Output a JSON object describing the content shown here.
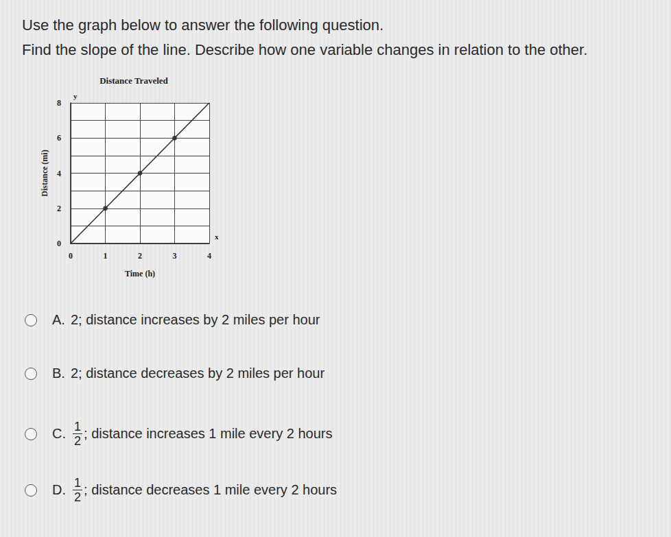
{
  "question": {
    "line1": "Use the graph below to answer the following question.",
    "line2": "Find the slope of the line. Describe how one variable changes in relation to the other."
  },
  "chart_data": {
    "type": "line",
    "title": "Distance Traveled",
    "x_label": "Time (h)",
    "y_label": "Distance (mi)",
    "axis_letters": {
      "x": "x",
      "y": "y"
    },
    "xlim": [
      0,
      4
    ],
    "xticks": [
      0,
      1,
      2,
      3,
      4
    ],
    "ylim": [
      0,
      8
    ],
    "yticks": [
      0,
      2,
      4,
      6,
      8
    ],
    "grid": true,
    "series": [
      {
        "type": "line",
        "x": [
          0,
          1,
          2,
          3,
          4
        ],
        "values": [
          0,
          2,
          4,
          6,
          8
        ],
        "color": "#333333"
      },
      {
        "type": "scatter",
        "x": [
          1,
          2,
          3
        ],
        "values": [
          2,
          4,
          6
        ],
        "color": "#222222",
        "marker": "circle"
      }
    ]
  },
  "options": [
    {
      "letter": "A.",
      "slope": "2",
      "description": "; distance increases by 2 miles per hour"
    },
    {
      "letter": "B.",
      "slope": "2",
      "description": "; distance decreases by 2 miles per hour"
    },
    {
      "letter": "C.",
      "slope": {
        "numerator": "1",
        "denominator": "2"
      },
      "description": "; distance increases 1 mile every 2 hours"
    },
    {
      "letter": "D.",
      "slope": {
        "numerator": "1",
        "denominator": "2"
      },
      "description": "; distance decreases 1 mile every 2 hours"
    }
  ]
}
